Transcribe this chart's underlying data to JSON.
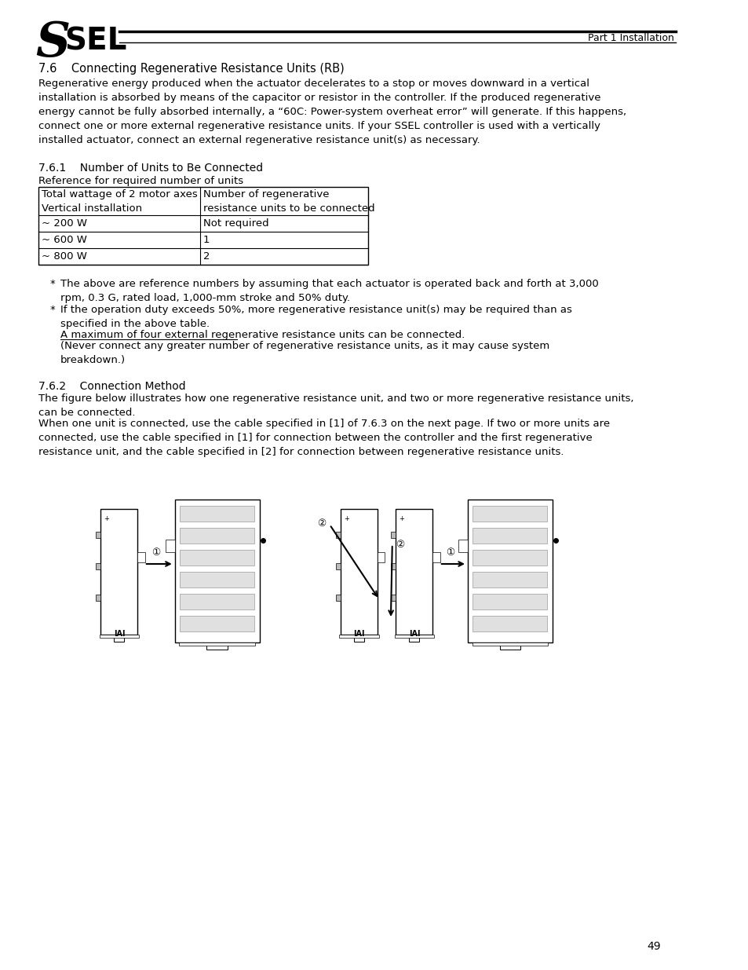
{
  "page_background": "#ffffff",
  "header_text": "Part 1 Installation",
  "section_title": "7.6    Connecting Regenerative Resistance Units (RB)",
  "body_text_1": "Regenerative energy produced when the actuator decelerates to a stop or moves downward in a vertical\ninstallation is absorbed by means of the capacitor or resistor in the controller. If the produced regenerative\nenergy cannot be fully absorbed internally, a “60C: Power-system overheat error” will generate. If this happens,\nconnect one or more external regenerative resistance units. If your SSEL controller is used with a vertically\ninstalled actuator, connect an external regenerative resistance unit(s) as necessary.",
  "subsection_1": "7.6.1    Number of Units to Be Connected",
  "table_ref": "Reference for required number of units",
  "table_headers": [
    "Total wattage of 2 motor axes\nVertical installation",
    "Number of regenerative\nresistance units to be connected"
  ],
  "table_rows": [
    [
      "~ 200 W",
      "Not required"
    ],
    [
      "~ 600 W",
      "1"
    ],
    [
      "~ 800 W",
      "2"
    ]
  ],
  "bullet1": "The above are reference numbers by assuming that each actuator is operated back and forth at 3,000\nrpm, 0.3 G, rated load, 1,000-mm stroke and 50% duty.",
  "bullet2_main": "If the operation duty exceeds 50%, more regenerative resistance unit(s) may be required than as\nspecified in the above table.",
  "bullet2_underline": "A maximum of four external regenerative resistance units can be connected.",
  "bullet2_paren": "(Never connect any greater number of regenerative resistance units, as it may cause system\nbreakdown.)",
  "subsection_2": "7.6.2    Connection Method",
  "body_text_2": "The figure below illustrates how one regenerative resistance unit, and two or more regenerative resistance units,\ncan be connected.",
  "body_text_3": "When one unit is connected, use the cable specified in [1] of 7.6.3 on the next page. If two or more units are\nconnected, use the cable specified in [1] for connection between the controller and the first regenerative\nresistance unit, and the cable specified in [2] for connection between regenerative resistance units.",
  "page_number": "49",
  "font_size_body": 9.5,
  "font_size_section": 10.5,
  "font_size_subsection": 10.0,
  "font_size_header": 9.0
}
